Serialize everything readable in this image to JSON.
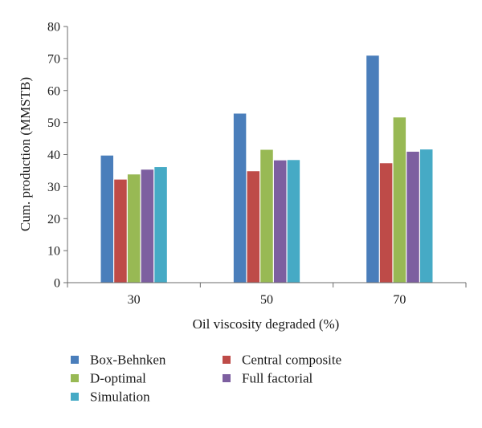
{
  "chart_data": {
    "type": "bar",
    "title": "",
    "xlabel": "Oil viscosity degraded (%)",
    "ylabel": "Cum. production (MMSTB)",
    "ylim": [
      0,
      80
    ],
    "yticks": [
      0,
      10,
      20,
      30,
      40,
      50,
      60,
      70,
      80
    ],
    "categories": [
      "30",
      "50",
      "70"
    ],
    "grid": false,
    "legend_position": "bottom",
    "series": [
      {
        "name": "Box-Behnken",
        "color": "#4A7EBB",
        "values": [
          39.7,
          52.8,
          70.9
        ]
      },
      {
        "name": "Central composite",
        "color": "#BE4B48",
        "values": [
          32.2,
          34.8,
          37.3
        ]
      },
      {
        "name": "D-optimal",
        "color": "#98B954",
        "values": [
          33.8,
          41.5,
          51.6
        ]
      },
      {
        "name": "Full factorial",
        "color": "#7D5FA0",
        "values": [
          35.3,
          38.2,
          40.9
        ]
      },
      {
        "name": "Simulation",
        "color": "#46AAC5",
        "values": [
          36.1,
          38.3,
          41.6
        ]
      }
    ]
  }
}
